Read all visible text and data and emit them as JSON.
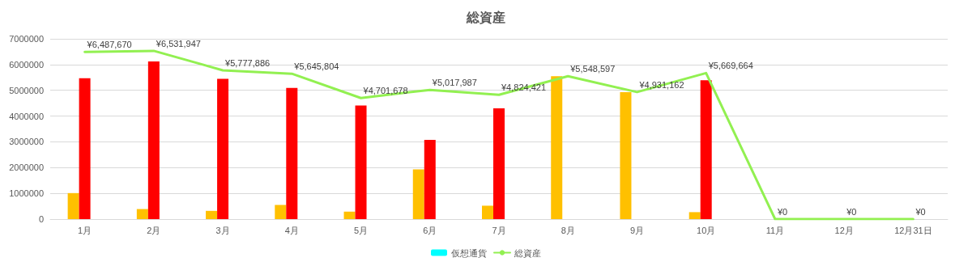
{
  "chart_data": {
    "type": "bar",
    "title": "総資産",
    "categories": [
      "1月",
      "2月",
      "3月",
      "4月",
      "5月",
      "6月",
      "7月",
      "8月",
      "9月",
      "10月",
      "11月",
      "12月",
      "12月31日"
    ],
    "series": [
      {
        "color": "#ffc000",
        "values": [
          1010000,
          390000,
          320000,
          550000,
          290000,
          1930000,
          520000,
          5550000,
          4930000,
          270000,
          null,
          null,
          null
        ]
      },
      {
        "color": "#ff0000",
        "values": [
          5470000,
          6120000,
          5450000,
          5090000,
          4410000,
          3080000,
          4300000,
          0,
          0,
          5390000,
          null,
          null,
          null
        ]
      },
      {
        "name": "仮想通貨",
        "color": "#00ffff",
        "values": [
          0,
          0,
          0,
          0,
          0,
          0,
          0,
          0,
          0,
          0,
          null,
          null,
          null
        ]
      },
      {
        "type": "line",
        "name": "総資産",
        "color": "#92f051",
        "values": [
          6487670,
          6531947,
          5777886,
          5645804,
          4701678,
          5017987,
          4824421,
          5548597,
          4931162,
          5669664,
          0,
          0,
          0
        ],
        "value_labels": [
          "¥6,487,670",
          "¥6,531,947",
          "¥5,777,886",
          "¥5,645,804",
          "¥4,701,678",
          "¥5,017,987",
          "¥4,824,421",
          "¥5,548,597",
          "¥4,931,162",
          "¥5,669,664",
          "¥0",
          "¥0",
          "¥0"
        ]
      }
    ],
    "ylim": [
      0,
      7000000
    ],
    "yticks": [
      0,
      1000000,
      2000000,
      3000000,
      4000000,
      5000000,
      6000000,
      7000000
    ],
    "grid": "y",
    "legend": "bottom",
    "marker": "none"
  }
}
